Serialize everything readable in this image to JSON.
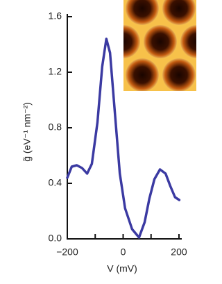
{
  "chart_data": {
    "type": "line",
    "x_label": "V (mV)",
    "y_label": "g̃ (eV⁻¹ nm⁻²)",
    "x": [
      -200,
      -184,
      -166,
      -147,
      -129,
      -112,
      -92,
      -75,
      -60,
      -47,
      -30,
      -12,
      7,
      32,
      57,
      77,
      94,
      112,
      132,
      152,
      169,
      186,
      201
    ],
    "values": [
      0.44,
      0.52,
      0.53,
      0.51,
      0.47,
      0.54,
      0.84,
      1.24,
      1.44,
      1.34,
      0.92,
      0.47,
      0.22,
      0.07,
      0.01,
      0.12,
      0.29,
      0.43,
      0.5,
      0.47,
      0.38,
      0.3,
      0.28
    ],
    "color": "#3b3aa2",
    "xlim": [
      -200,
      210
    ],
    "ylim": [
      0,
      1.62
    ],
    "xticks": [
      {
        "value": -200,
        "label": "−200"
      },
      0,
      200
    ],
    "xminorticks": [
      -100,
      100
    ],
    "yticks": [
      {
        "value": 0,
        "label": "0.0"
      },
      0.4,
      0.8,
      1.2,
      1.6
    ]
  }
}
